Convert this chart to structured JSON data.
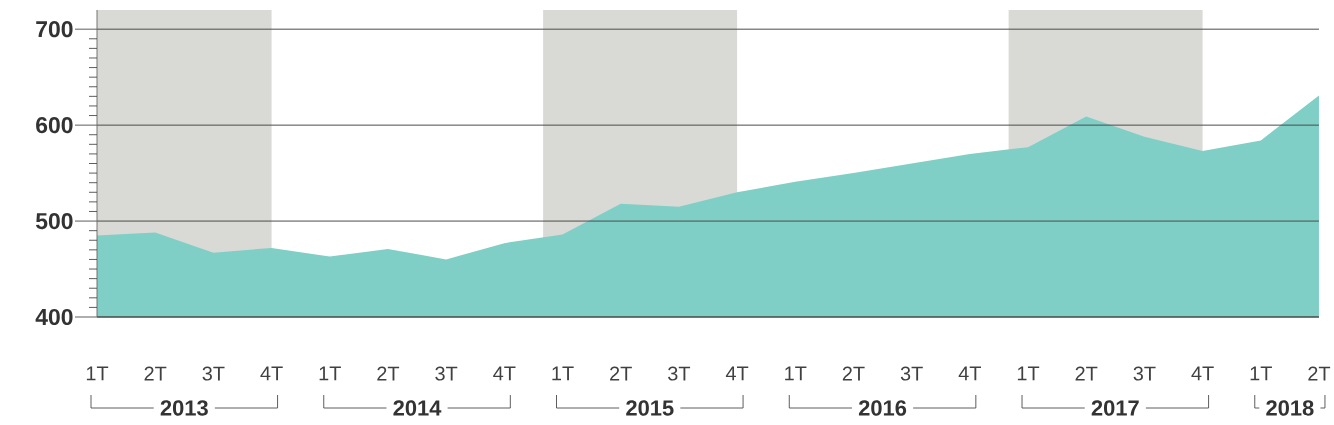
{
  "chart_data": {
    "type": "area",
    "x": [
      "2013-01",
      "2013-04",
      "2013-07",
      "2013-10",
      "2014-01",
      "2014-04",
      "2014-07",
      "2014-10",
      "2015-01",
      "2015-04",
      "2015-07",
      "2015-10",
      "2016-01",
      "2016-04",
      "2016-07",
      "2016-10",
      "2017-01",
      "2017-04",
      "2017-07",
      "2017-10",
      "2018-01",
      "2018-04"
    ],
    "values": [
      485,
      488,
      467,
      472,
      463,
      471,
      460,
      477,
      486,
      518,
      515,
      530,
      541,
      550,
      560,
      570,
      577,
      609,
      588,
      573,
      584,
      631
    ],
    "color": "#7fcfc6",
    "xlim": [
      "2013-01",
      "2018-04"
    ],
    "ylim": [
      400,
      720
    ],
    "xticks": [
      {
        "value": "2013-01",
        "label": "1T"
      },
      {
        "value": "2013-04",
        "label": "2T"
      },
      {
        "value": "2013-07",
        "label": "3T"
      },
      {
        "value": "2013-10",
        "label": "4T"
      },
      {
        "value": "2014-01",
        "label": "1T"
      },
      {
        "value": "2014-04",
        "label": "2T"
      },
      {
        "value": "2014-07",
        "label": "3T"
      },
      {
        "value": "2014-10",
        "label": "4T"
      },
      {
        "value": "2015-01",
        "label": "1T"
      },
      {
        "value": "2015-04",
        "label": "2T"
      },
      {
        "value": "2015-07",
        "label": "3T"
      },
      {
        "value": "2015-10",
        "label": "4T"
      },
      {
        "value": "2016-01",
        "label": "1T"
      },
      {
        "value": "2016-04",
        "label": "2T"
      },
      {
        "value": "2016-07",
        "label": "3T"
      },
      {
        "value": "2016-10",
        "label": "4T"
      },
      {
        "value": "2017-01",
        "label": "1T"
      },
      {
        "value": "2017-04",
        "label": "2T"
      },
      {
        "value": "2017-07",
        "label": "3T"
      },
      {
        "value": "2017-10",
        "label": "4T"
      },
      {
        "value": "2018-01",
        "label": "1T"
      },
      {
        "value": "2018-04",
        "label": "2T"
      }
    ],
    "yticks": [
      400,
      500,
      600,
      700,
      {
        "value": 410,
        "label": null
      },
      {
        "value": 420,
        "label": null
      },
      {
        "value": 430,
        "label": null
      },
      {
        "value": 440,
        "label": null
      },
      {
        "value": 450,
        "label": null
      },
      {
        "value": 460,
        "label": null
      },
      {
        "value": 470,
        "label": null
      },
      {
        "value": 480,
        "label": null
      },
      {
        "value": 490,
        "label": null
      },
      {
        "value": 510,
        "label": null
      },
      {
        "value": 520,
        "label": null
      },
      {
        "value": 530,
        "label": null
      },
      {
        "value": 540,
        "label": null
      },
      {
        "value": 550,
        "label": null
      },
      {
        "value": 560,
        "label": null
      },
      {
        "value": 570,
        "label": null
      },
      {
        "value": 580,
        "label": null
      },
      {
        "value": 590,
        "label": null
      },
      {
        "value": 610,
        "label": null
      },
      {
        "value": 620,
        "label": null
      },
      {
        "value": 630,
        "label": null
      },
      {
        "value": 640,
        "label": null
      },
      {
        "value": 650,
        "label": null
      },
      {
        "value": 660,
        "label": null
      },
      {
        "value": 670,
        "label": null
      },
      {
        "value": 680,
        "label": null
      },
      {
        "value": 690,
        "label": null
      }
    ],
    "grid": "y",
    "bands": [
      {
        "axis": "x",
        "from": "2013-01",
        "to": "2013-10",
        "color": "#d9d9d6"
      },
      {
        "axis": "x",
        "from": "2014-12",
        "to": "2015-10",
        "color": "#d9d9d6"
      },
      {
        "axis": "x",
        "from": "2016-12",
        "to": "2017-10",
        "color": "#d9d9d6"
      }
    ],
    "annotations": [
      "2013",
      "2014",
      "2015",
      "2016",
      "2017",
      "2018"
    ]
  }
}
